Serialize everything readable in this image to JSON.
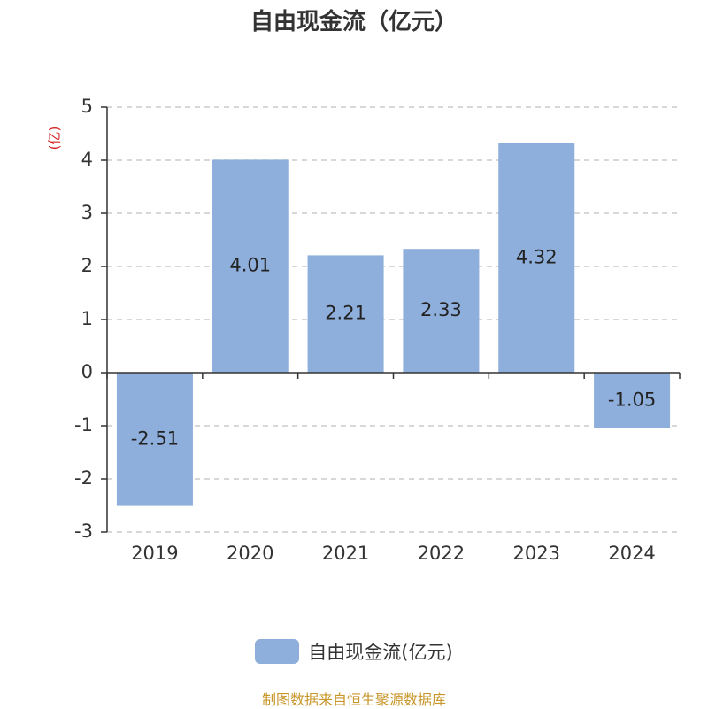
{
  "chart_data": {
    "type": "bar",
    "title": "自由现金流（亿元）",
    "ylabel": "(亿)",
    "categories": [
      "2019",
      "2020",
      "2021",
      "2022",
      "2023",
      "2024"
    ],
    "series": [
      {
        "name": "自由现金流(亿元)",
        "values": [
          -2.51,
          4.01,
          2.21,
          2.33,
          4.32,
          -1.05
        ]
      }
    ],
    "data_labels": [
      "-2.51",
      "4.01",
      "2.21",
      "2.33",
      "4.32",
      "-1.05"
    ],
    "yticks": [
      "5",
      "4",
      "3",
      "2",
      "1",
      "0",
      "-1",
      "-2",
      "-3"
    ],
    "ylim": [
      -3,
      5
    ],
    "grid": true,
    "legend_position": "bottom-center",
    "colors": {
      "bar": "#8eaedb",
      "ylabel": "#d42020",
      "source": "#c8962a"
    }
  },
  "source_text": "制图数据来自恒生聚源数据库"
}
